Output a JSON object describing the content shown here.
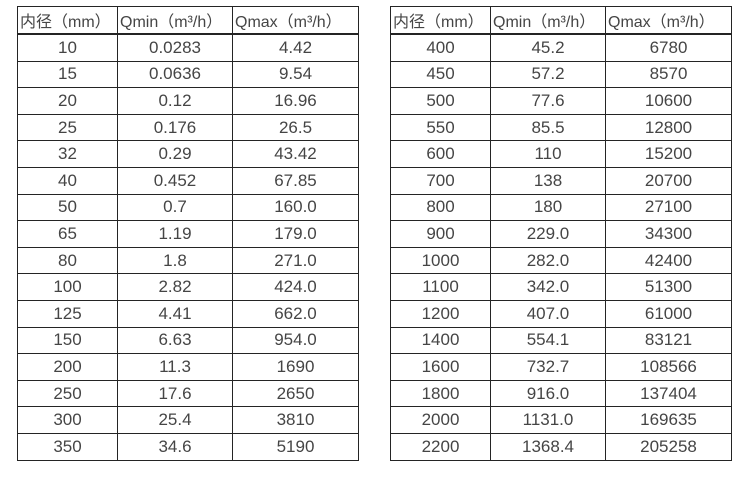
{
  "colors": {
    "background": "#ffffff",
    "border": "#242424",
    "text": "#454545"
  },
  "tables": [
    {
      "headers": [
        "内径（mm）",
        "Qmin（m³/h）",
        "Qmax（m³/h）"
      ],
      "rows": [
        [
          "10",
          "0.0283",
          "4.42"
        ],
        [
          "15",
          "0.0636",
          "9.54"
        ],
        [
          "20",
          "0.12",
          "16.96"
        ],
        [
          "25",
          "0.176",
          "26.5"
        ],
        [
          "32",
          "0.29",
          "43.42"
        ],
        [
          "40",
          "0.452",
          "67.85"
        ],
        [
          "50",
          "0.7",
          "160.0"
        ],
        [
          "65",
          "1.19",
          "179.0"
        ],
        [
          "80",
          "1.8",
          "271.0"
        ],
        [
          "100",
          "2.82",
          "424.0"
        ],
        [
          "125",
          "4.41",
          "662.0"
        ],
        [
          "150",
          "6.63",
          "954.0"
        ],
        [
          "200",
          "11.3",
          "1690"
        ],
        [
          "250",
          "17.6",
          "2650"
        ],
        [
          "300",
          "25.4",
          "3810"
        ],
        [
          "350",
          "34.6",
          "5190"
        ]
      ]
    },
    {
      "headers": [
        "内径（mm）",
        "Qmin（m³/h）",
        "Qmax（m³/h）"
      ],
      "rows": [
        [
          "400",
          "45.2",
          "6780"
        ],
        [
          "450",
          "57.2",
          "8570"
        ],
        [
          "500",
          "77.6",
          "10600"
        ],
        [
          "550",
          "85.5",
          "12800"
        ],
        [
          "600",
          "110",
          "15200"
        ],
        [
          "700",
          "138",
          "20700"
        ],
        [
          "800",
          "180",
          "27100"
        ],
        [
          "900",
          "229.0",
          "34300"
        ],
        [
          "1000",
          "282.0",
          "42400"
        ],
        [
          "1100",
          "342.0",
          "51300"
        ],
        [
          "1200",
          "407.0",
          "61000"
        ],
        [
          "1400",
          "554.1",
          "83121"
        ],
        [
          "1600",
          "732.7",
          "108566"
        ],
        [
          "1800",
          "916.0",
          "137404"
        ],
        [
          "2000",
          "1131.0",
          "169635"
        ],
        [
          "2200",
          "1368.4",
          "205258"
        ]
      ]
    }
  ]
}
